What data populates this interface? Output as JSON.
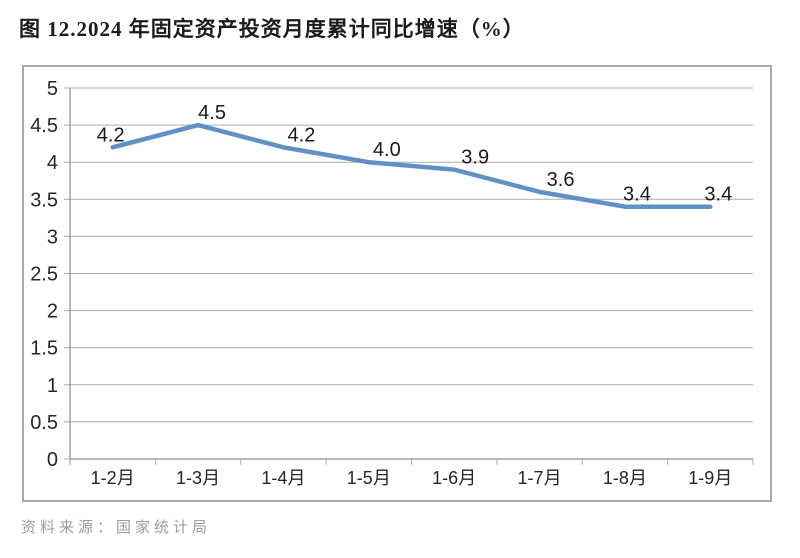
{
  "title": "图 12.2024 年固定资产投资月度累计同比增速（%）",
  "source_note": "资料来源：国家统计局",
  "chart_data": {
    "type": "line",
    "title": "图 12.2024 年固定资产投资月度累计同比增速（%）",
    "categories": [
      "1-2月",
      "1-3月",
      "1-4月",
      "1-5月",
      "1-6月",
      "1-7月",
      "1-8月",
      "1-9月"
    ],
    "values": [
      4.2,
      4.5,
      4.2,
      4.0,
      3.9,
      3.6,
      3.4,
      3.4
    ],
    "data_labels": [
      "4.2",
      "4.5",
      "4.2",
      "4.0",
      "3.9",
      "3.6",
      "3.4",
      "3.4"
    ],
    "xlabel": "",
    "ylabel": "",
    "ylim": [
      0,
      5
    ],
    "ytick_step": 0.5,
    "ytick_labels_top_to_bottom": [
      "5",
      "4.5",
      "4",
      "3.5",
      "3",
      "2.5",
      "2",
      "1.5",
      "1",
      "0.5",
      "0"
    ],
    "grid": true,
    "legend": "none",
    "source": "资料来源：国家统计局"
  },
  "colors": {
    "line": "#5f90c6",
    "grid": "#acacac",
    "axis": "#8c8c8c",
    "chart_border": "#a9a9a9",
    "label_text": "#1a1a1a",
    "tick_text": "#262626",
    "source_text": "#9b9b9b",
    "title_text": "#1b1b1b"
  }
}
